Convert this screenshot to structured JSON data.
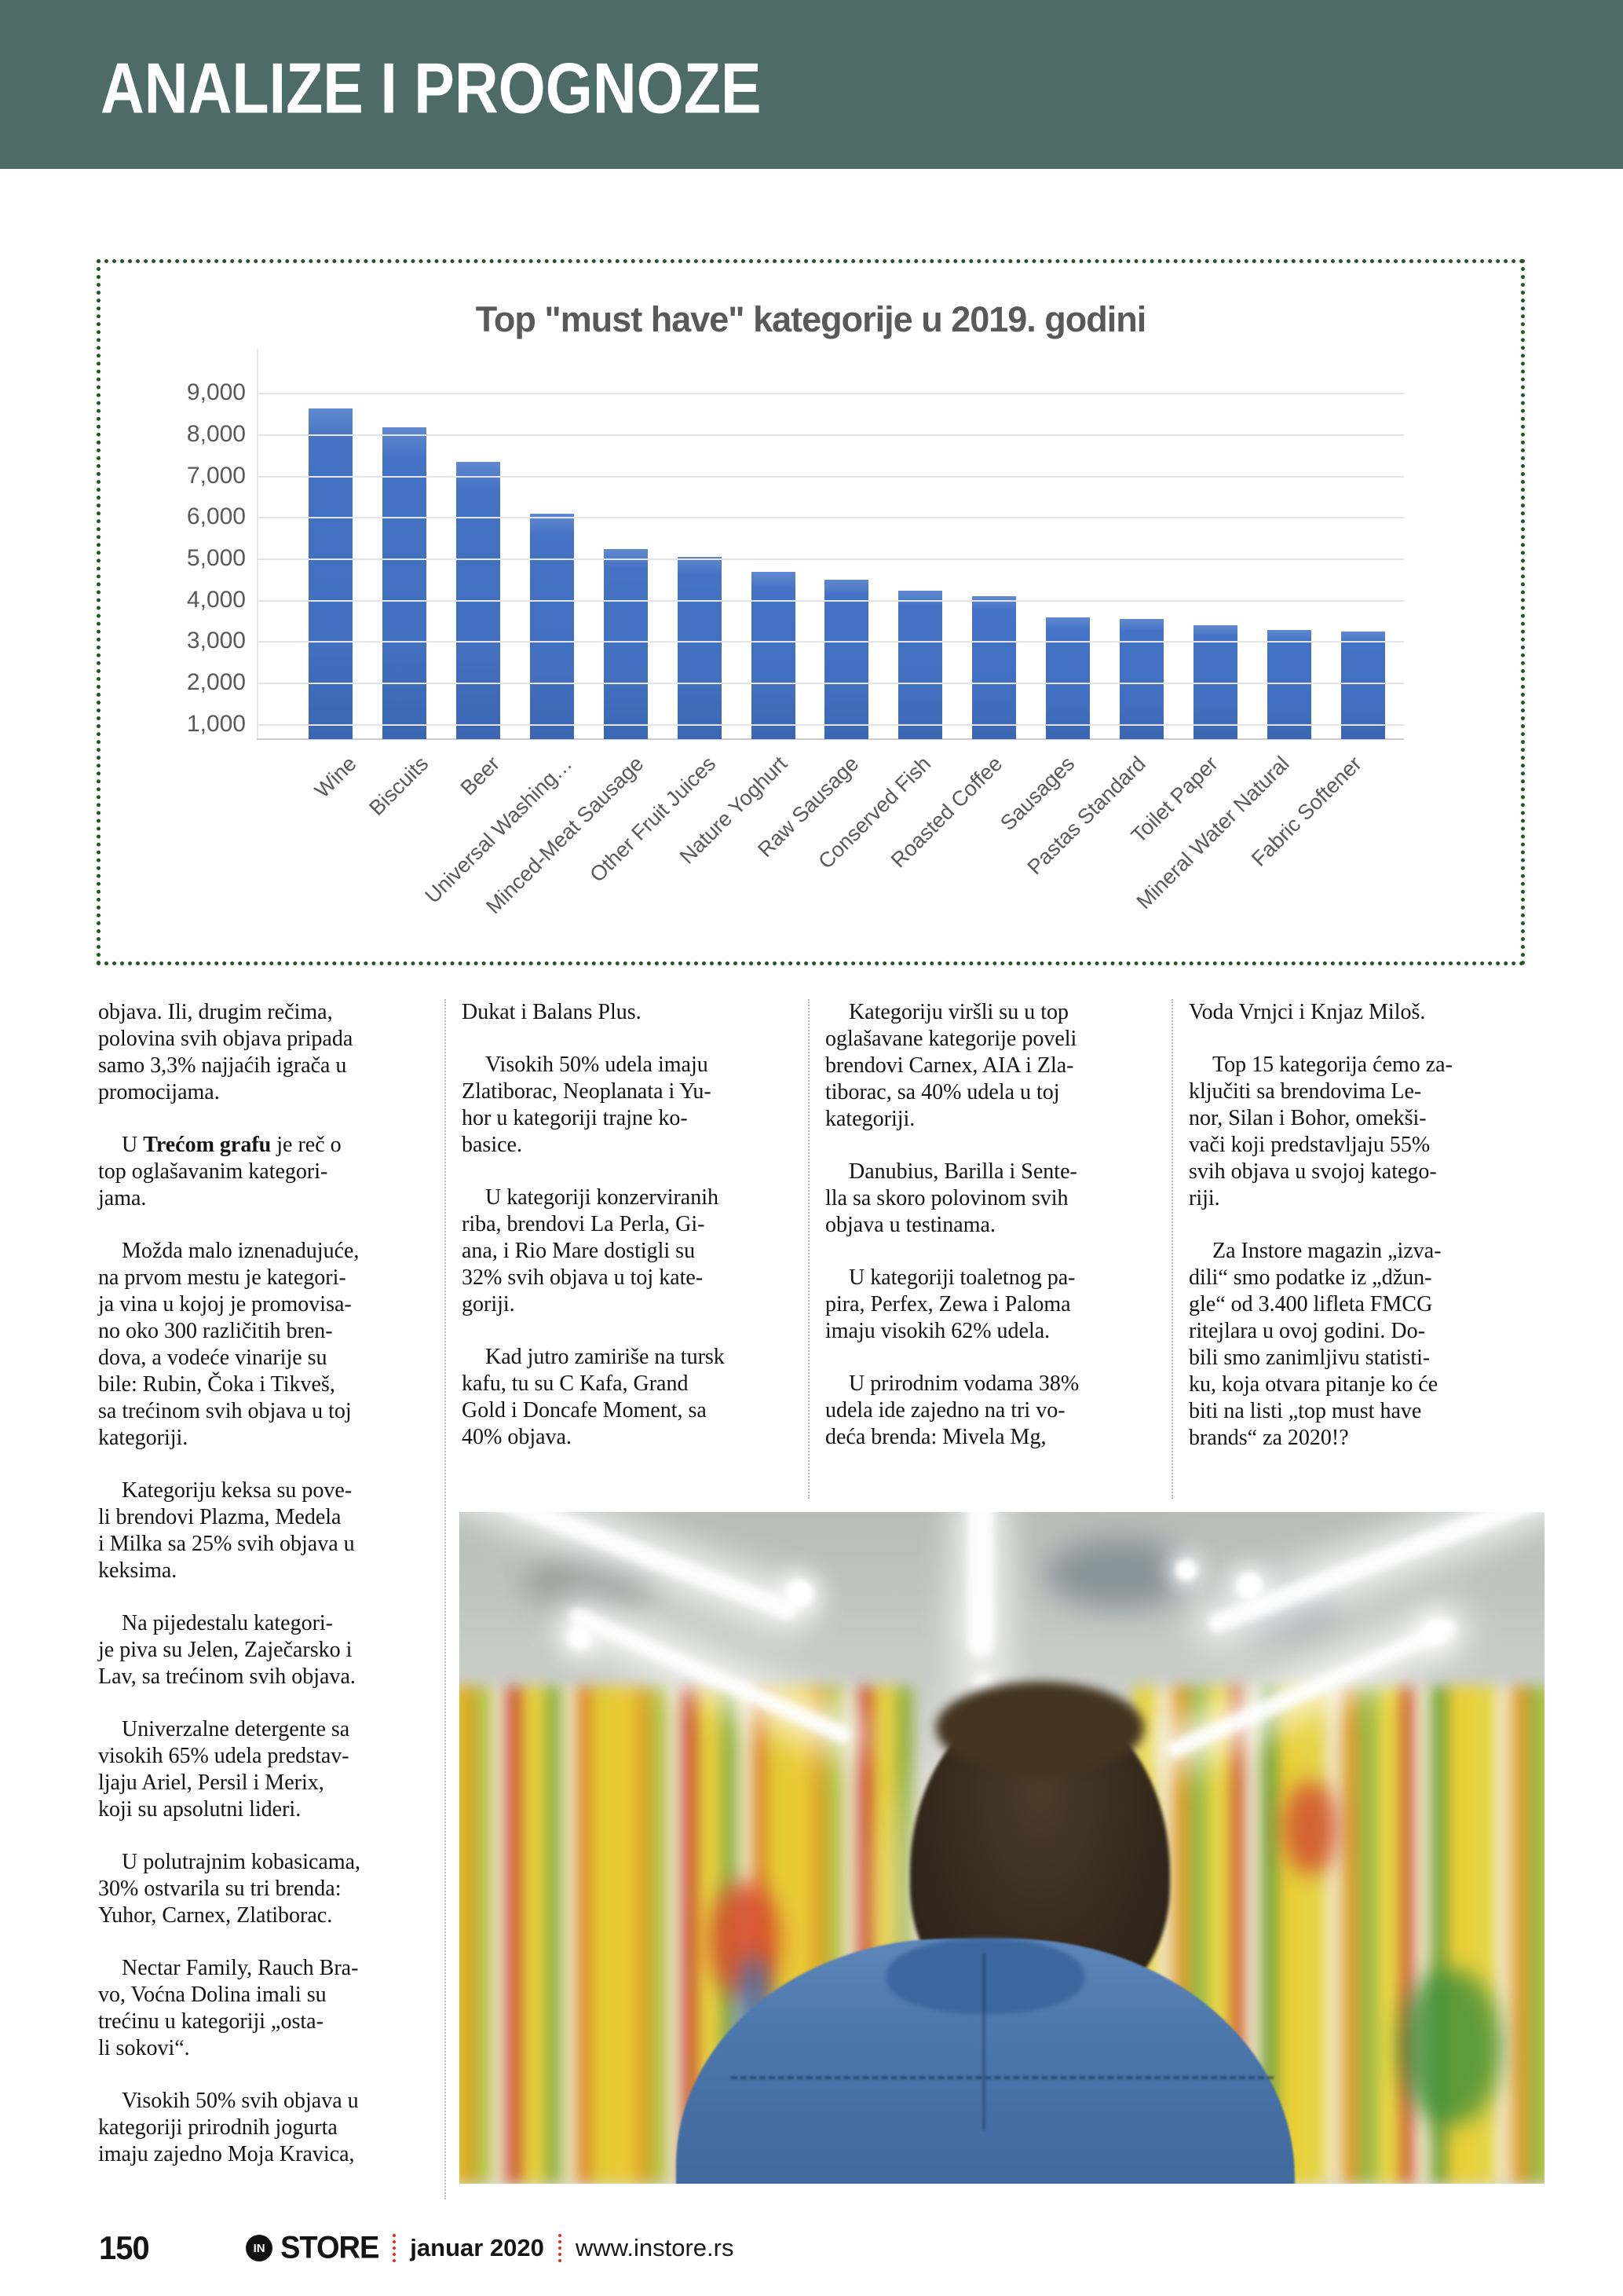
{
  "header": {
    "title": "ANALIZE I PROGNOZE"
  },
  "colors": {
    "header_bg": "#4e6c66",
    "chart_border_green": "#265327",
    "bar_blue": "#4472c4",
    "axis_gray": "#595959",
    "footer_red": "#d93025"
  },
  "chart_data": {
    "type": "bar",
    "title": "Top \"must have\" kategorije u 2019. godini",
    "categories": [
      "Wine",
      "Biscuits",
      "Beer",
      "Universal Washing…",
      "Minced-Meat Sausage",
      "Other Fruit Juices",
      "Nature Yoghurt",
      "Raw Sausage",
      "Conserved Fish",
      "Roasted Coffee",
      "Sausages",
      "Pastas Standard",
      "Toilet Paper",
      "Mineral Water Natural",
      "Fabric Softener"
    ],
    "values": [
      8650,
      8200,
      7350,
      6100,
      5250,
      5050,
      4700,
      4500,
      4250,
      4100,
      3600,
      3550,
      3400,
      3300,
      3250
    ],
    "xlabel": "",
    "ylabel": "",
    "yticks": [
      1000,
      2000,
      3000,
      4000,
      5000,
      6000,
      7000,
      8000,
      9000
    ],
    "ytick_labels": [
      "1,000",
      "2,000",
      "3,000",
      "4,000",
      "5,000",
      "6,000",
      "7,000",
      "8,000",
      "9,000"
    ],
    "ylim": [
      650,
      9730
    ],
    "grid": true,
    "legend": false,
    "bar_color": "#4472c4"
  },
  "columns": {
    "col1": [
      {
        "indent": false,
        "text": "objava. Ili, drugim rečima,\npolovina svih objava pripada\nsamo 3,3% najjaćih igrača u\npromocijama."
      },
      {
        "indent": true,
        "segments": [
          {
            "t": "U ",
            "b": false
          },
          {
            "t": "Trećom grafu",
            "b": true
          },
          {
            "t": " je reč o\ntop oglašavanim kategori-\njama.",
            "b": false
          }
        ]
      },
      {
        "indent": true,
        "text": "Možda malo iznenadujuće,\nna prvom mestu je kategori-\nja vina u kojoj je promovisa-\nno oko 300 različitih bren-\ndova, a vodeće vinarije su\nbile: Rubin, Čoka i Tikveš,\nsa trećinom svih objava u toj\nkategoriji."
      },
      {
        "indent": true,
        "text": "Kategoriju keksa su pove-\nli brendovi Plazma, Medela\ni Milka sa 25% svih objava u\nkeksima."
      },
      {
        "indent": true,
        "text": "Na pijedestalu kategori-\nje piva su Jelen, Zaječarsko i\nLav, sa trećinom svih objava."
      },
      {
        "indent": true,
        "text": "Univerzalne detergente sa\nvisokih 65% udela predstav-\nljaju Ariel, Persil i Merix,\nkoji su apsolutni lideri."
      },
      {
        "indent": true,
        "text": "U polutrajnim kobasicama,\n30% ostvarila su tri brenda:\nYuhor, Carnex, Zlatiborac."
      },
      {
        "indent": true,
        "text": "Nectar Family, Rauch Bra-\nvo, Voćna Dolina imali su\ntrećinu u kategoriji „osta-\nli sokovi“."
      },
      {
        "indent": true,
        "text": "Visokih 50% svih objava u\nkategoriji prirodnih jogurta\nimaju zajedno Moja Kravica,"
      }
    ],
    "col2": [
      {
        "indent": false,
        "text": "Dukat i Balans Plus."
      },
      {
        "indent": true,
        "text": "Visokih 50% udela imaju\nZlatiborac, Neoplanata i Yu-\nhor u kategoriji trajne ko-\nbasice."
      },
      {
        "indent": true,
        "text": "U kategoriji konzerviranih\nriba, brendovi La Perla, Gi-\nana, i Rio Mare dostigli su\n32% svih objava u toj kate-\ngoriji."
      },
      {
        "indent": true,
        "text": "Kad jutro zamiriše na tursk\nkafu, tu su C Kafa, Grand\nGold i Doncafe Moment, sa\n40% objava."
      }
    ],
    "col3": [
      {
        "indent": true,
        "text": "Kategoriju viršli su u top\noglašavane kategorije poveli\nbrendovi Carnex, AIA i Zla-\ntiborac, sa 40% udela u toj\nkategoriji."
      },
      {
        "indent": true,
        "text": "Danubius, Barilla i Sente-\nlla sa skoro polovinom svih\nobjava u testinama."
      },
      {
        "indent": true,
        "text": "U kategoriji toaletnog pa-\npira, Perfex, Zewa i Paloma\nimaju visokih 62% udela."
      },
      {
        "indent": true,
        "text": "U prirodnim vodama 38%\nudela ide zajedno na tri vo-\ndeća brenda: Mivela Mg,"
      }
    ],
    "col4": [
      {
        "indent": false,
        "text": "Voda Vrnjci i Knjaz Miloš."
      },
      {
        "indent": true,
        "text": "Top 15 kategorija ćemo za-\nključiti sa brendovima Le-\nnor, Silan i Bohor, omekši-\nvači koji predstavljaju 55%\nsvih objava u svojoj katego-\nriji."
      },
      {
        "indent": true,
        "text": "Za Instore magazin „izva-\ndili“ smo podatke iz „džun-\ngle“ od 3.400 lifleta FMCG\nritejlara u ovoj godini. Do-\nbili smo zanimljivu statisti-\nku, koja otvara pitanje ko će\nbiti na listi „top must have\nbrands“ za 2020!?"
      }
    ]
  },
  "footer": {
    "page_number": "150",
    "logo_circle": "IN",
    "logo_text": "STORE",
    "issue": "januar 2020",
    "website": "www.instore.rs"
  }
}
